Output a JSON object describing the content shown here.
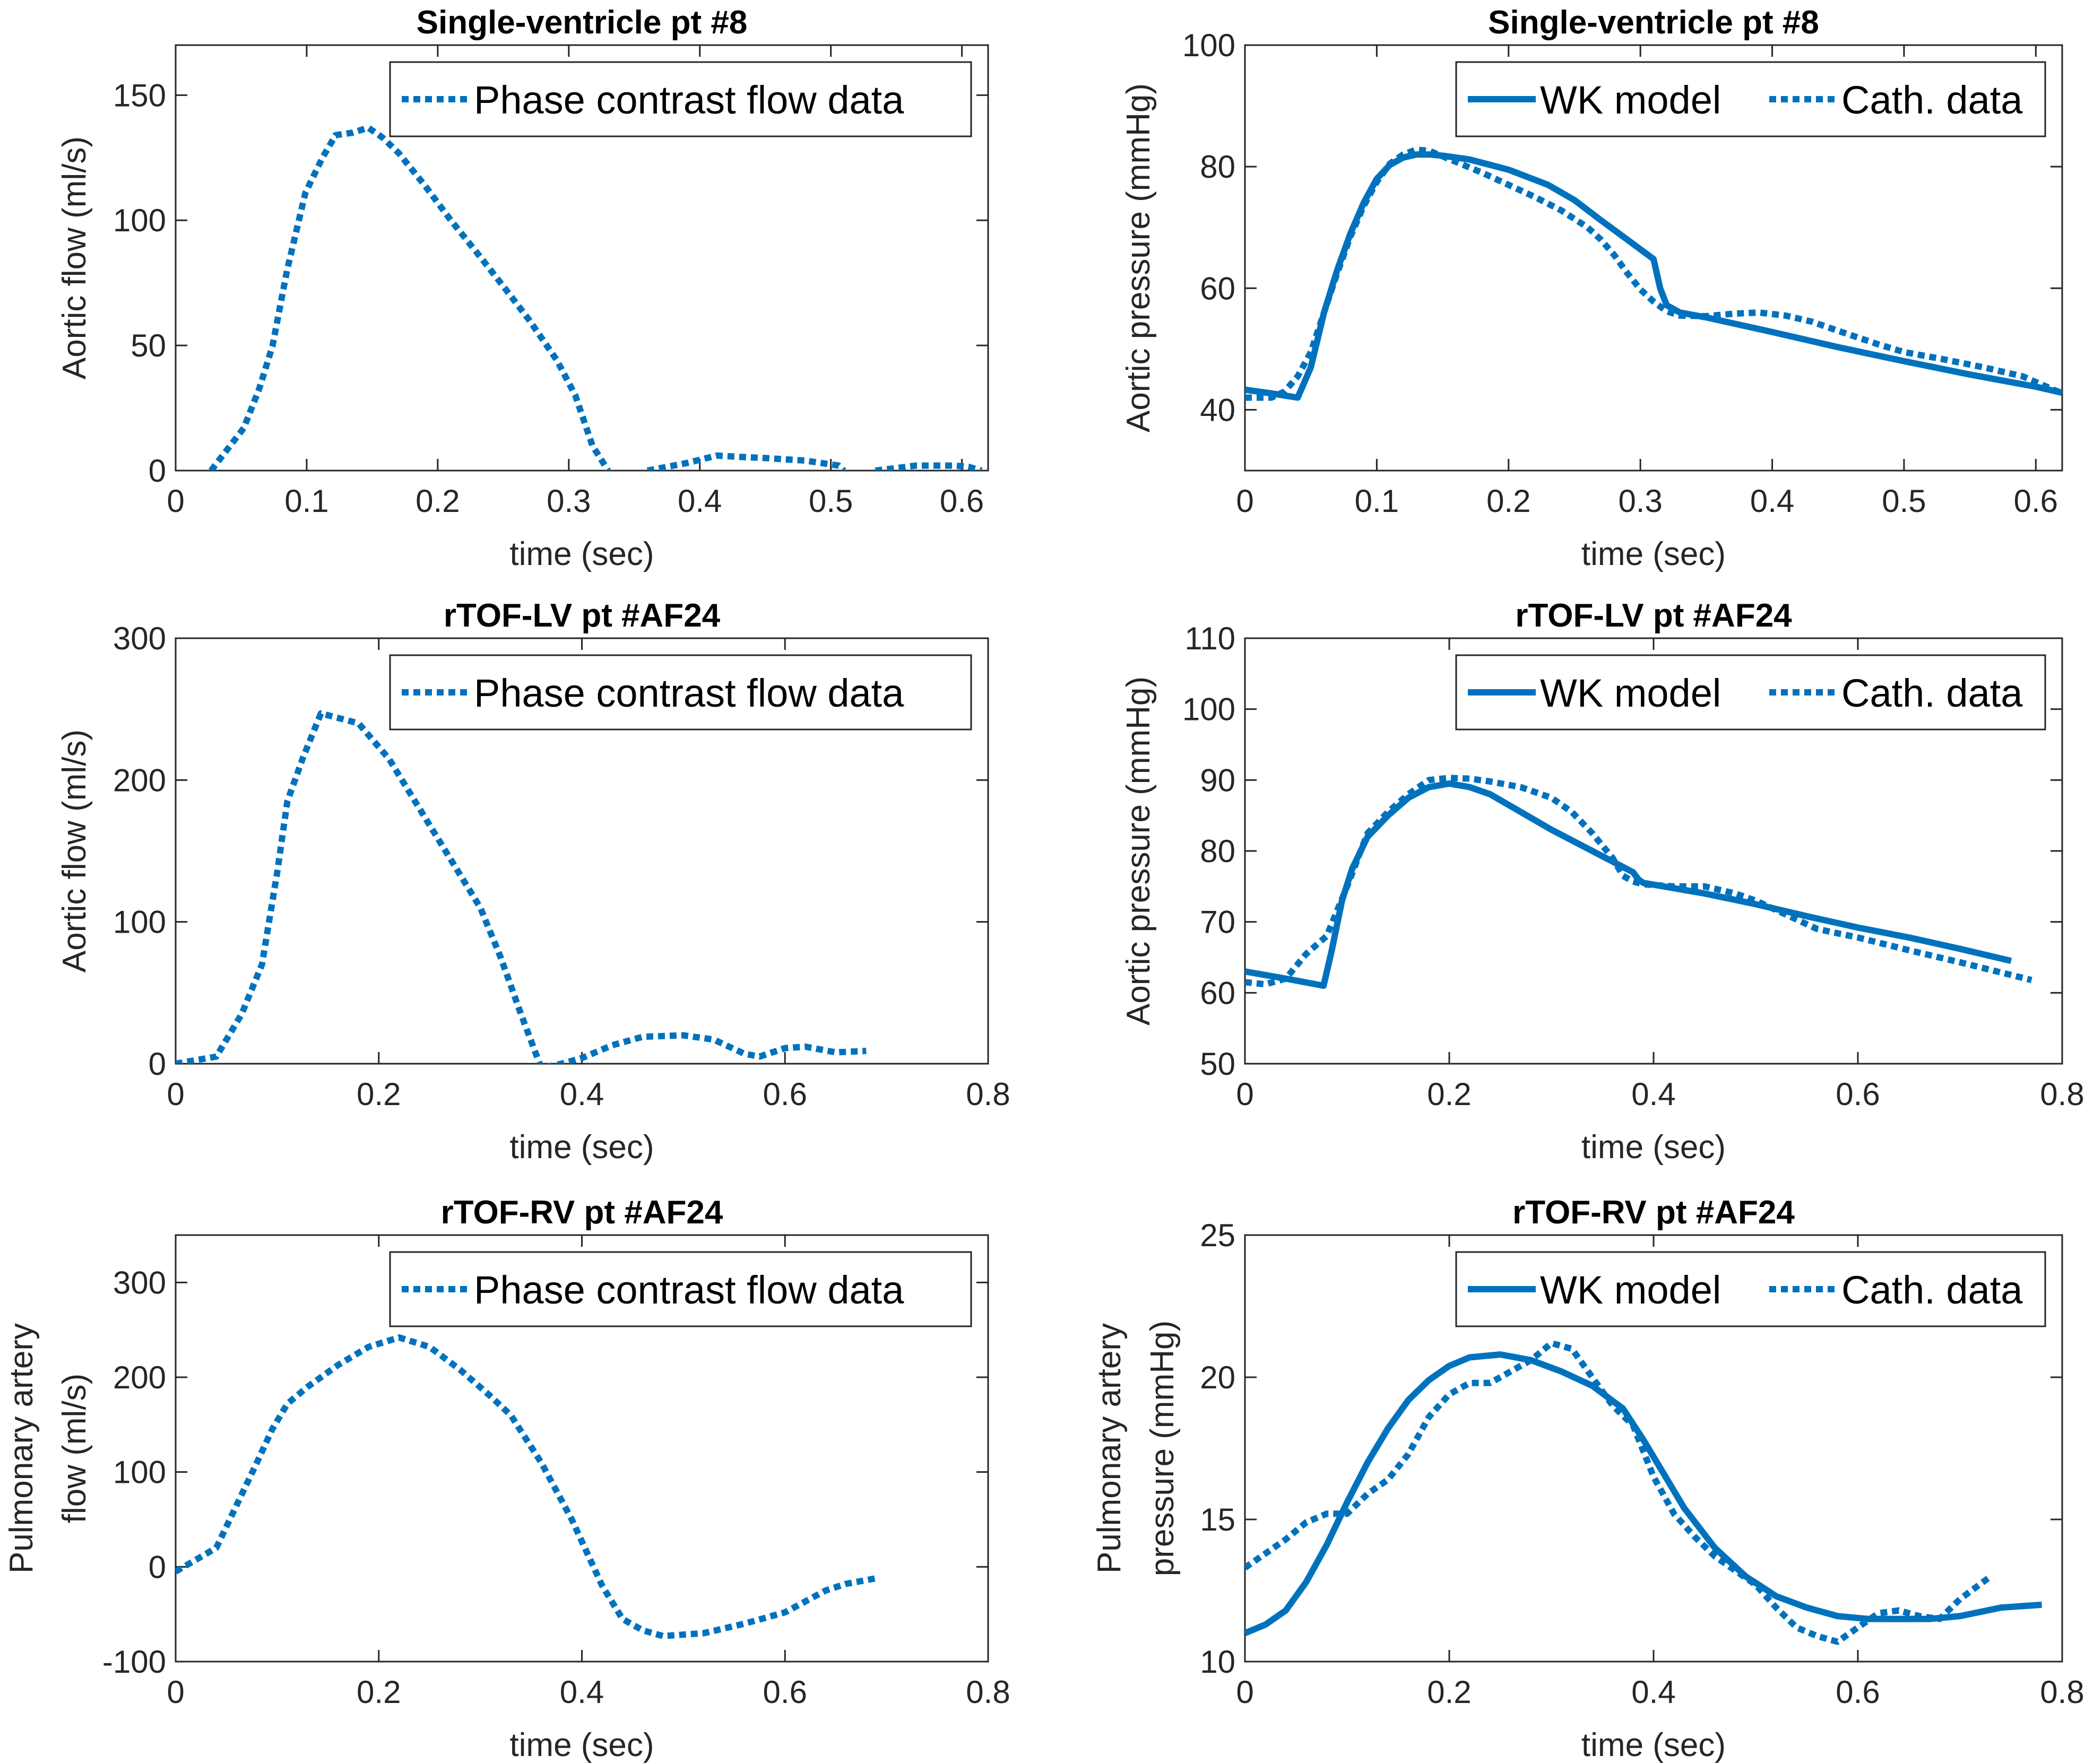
{
  "figure": {
    "line_color": "#0072BD",
    "text_color": "#262626"
  },
  "chart_data": [
    {
      "id": "p1",
      "type": "line",
      "title": "Single-ventricle pt #8",
      "xlabel": "time (sec)",
      "ylabel": [
        "Aortic flow (ml/s)"
      ],
      "xlim": [
        0,
        0.62
      ],
      "ylim": [
        0,
        170
      ],
      "xticks": [
        0,
        0.1,
        0.2,
        0.3,
        0.4,
        0.5,
        0.6
      ],
      "xtick_labels": [
        "0",
        "0.1",
        "0.2",
        "0.3",
        "0.4",
        "0.5",
        "0.6"
      ],
      "yticks": [
        0,
        50,
        100,
        150
      ],
      "ytick_labels": [
        "0",
        "50",
        "100",
        "150"
      ],
      "grid": false,
      "legend": {
        "location": "top-right",
        "entries": [
          "Phase contrast flow data"
        ]
      },
      "series": [
        {
          "name": "Phase contrast flow data",
          "style": "dotted",
          "segments": [
            {
              "x": [
                0.027,
                0.052,
                0.064,
                0.074,
                0.085,
                0.099,
                0.112,
                0.122,
                0.135,
                0.147,
                0.158,
                0.17,
                0.19,
                0.21,
                0.23,
                0.251,
                0.27,
                0.291,
                0.305,
                0.318,
                0.33
              ],
              "y": [
                0,
                17,
                33,
                50,
                80,
                111,
                125,
                134,
                135,
                137,
                133,
                127,
                114,
                100,
                87,
                73,
                60,
                44,
                30,
                10,
                0
              ]
            },
            {
              "x": [
                0.36,
                0.39,
                0.413,
                0.43,
                0.45,
                0.48,
                0.506,
                0.51
              ],
              "y": [
                0,
                3,
                6,
                5.5,
                5,
                4,
                2,
                0
              ]
            },
            {
              "x": [
                0.534,
                0.55,
                0.565,
                0.58,
                0.594,
                0.605,
                0.615
              ],
              "y": [
                0,
                1,
                2,
                2,
                2,
                1.5,
                0
              ]
            }
          ]
        }
      ]
    },
    {
      "id": "p2",
      "type": "line",
      "title": "Single-ventricle pt #8",
      "xlabel": "time (sec)",
      "ylabel": [
        "Aortic pressure (mmHg)"
      ],
      "xlim": [
        0,
        0.62
      ],
      "ylim": [
        30,
        100
      ],
      "xticks": [
        0,
        0.1,
        0.2,
        0.3,
        0.4,
        0.5,
        0.6
      ],
      "xtick_labels": [
        "0",
        "0.1",
        "0.2",
        "0.3",
        "0.4",
        "0.5",
        "0.6"
      ],
      "yticks": [
        40,
        60,
        80,
        100
      ],
      "ytick_labels": [
        "40",
        "60",
        "80",
        "100"
      ],
      "grid": false,
      "legend": {
        "location": "top-right",
        "entries": [
          "WK model",
          "Cath. data"
        ]
      },
      "series": [
        {
          "name": "WK model",
          "style": "solid",
          "segments": [
            {
              "x": [
                0,
                0.02,
                0.04,
                0.05,
                0.06,
                0.07,
                0.08,
                0.09,
                0.1,
                0.11,
                0.12,
                0.13,
                0.14,
                0.15,
                0.17,
                0.2,
                0.23,
                0.25,
                0.27,
                0.29,
                0.31,
                0.315,
                0.32,
                0.33,
                0.35,
                0.4,
                0.45,
                0.5,
                0.55,
                0.6,
                0.62
              ],
              "y": [
                43.3,
                42.7,
                42,
                47,
                56,
                63,
                69,
                74,
                78,
                80.3,
                81.5,
                82,
                82,
                81.8,
                81.2,
                79.5,
                77,
                74.5,
                71.2,
                68,
                64.8,
                60,
                57.2,
                56,
                55.2,
                52.8,
                50.3,
                48,
                45.8,
                43.8,
                42.8
              ]
            }
          ]
        },
        {
          "name": "Cath. data",
          "style": "dotted",
          "segments": [
            {
              "x": [
                0,
                0.02,
                0.03,
                0.04,
                0.05,
                0.06,
                0.07,
                0.08,
                0.09,
                0.1,
                0.11,
                0.12,
                0.13,
                0.14,
                0.16,
                0.18,
                0.2,
                0.22,
                0.24,
                0.26,
                0.27,
                0.28,
                0.29,
                0.3,
                0.31,
                0.32,
                0.33,
                0.35,
                0.37,
                0.39,
                0.41,
                0.43,
                0.45,
                0.48,
                0.5,
                0.53,
                0.56,
                0.59,
                0.62
              ],
              "y": [
                42,
                42,
                43,
                45.5,
                49.5,
                56,
                62.5,
                68.5,
                73.5,
                77.5,
                80.5,
                82,
                82.8,
                82.6,
                80.8,
                79,
                77,
                75,
                72.8,
                70,
                68,
                65.5,
                62.5,
                59.8,
                57.8,
                56.2,
                55.5,
                55.4,
                55.8,
                56,
                55.5,
                54.5,
                53,
                50.8,
                49.5,
                48.3,
                47,
                45.5,
                42.7
              ]
            }
          ]
        }
      ]
    },
    {
      "id": "p3",
      "type": "line",
      "title": "rTOF-LV pt #AF24",
      "xlabel": "time (sec)",
      "ylabel": [
        "Aortic flow (ml/s)"
      ],
      "xlim": [
        0,
        0.8
      ],
      "ylim": [
        0,
        300
      ],
      "xticks": [
        0,
        0.2,
        0.4,
        0.6,
        0.8
      ],
      "xtick_labels": [
        "0",
        "0.2",
        "0.4",
        "0.6",
        "0.8"
      ],
      "yticks": [
        0,
        100,
        200,
        300
      ],
      "ytick_labels": [
        "0",
        "100",
        "200",
        "300"
      ],
      "grid": false,
      "legend": {
        "location": "top-right",
        "entries": [
          "Phase contrast flow data"
        ]
      },
      "series": [
        {
          "name": "Phase contrast flow data",
          "style": "dotted",
          "segments": [
            {
              "x": [
                0,
                0.04,
                0.065,
                0.085,
                0.1,
                0.11,
                0.125,
                0.143,
                0.18,
                0.21,
                0.24,
                0.27,
                0.3,
                0.32,
                0.34,
                0.36,
                0.38,
                0.4,
                0.43,
                0.46,
                0.5,
                0.53,
                0.56,
                0.575,
                0.6,
                0.62,
                0.65,
                0.68
              ],
              "y": [
                0,
                5,
                35,
                70,
                135,
                185,
                215,
                247,
                240,
                215,
                180,
                145,
                110,
                75,
                35,
                -3,
                0,
                4,
                13,
                19,
                20,
                17,
                7,
                5,
                11,
                12,
                8,
                9
              ]
            }
          ]
        }
      ]
    },
    {
      "id": "p4",
      "type": "line",
      "title": "rTOF-LV pt #AF24",
      "xlabel": "time (sec)",
      "ylabel": [
        "Aortic pressure (mmHg)"
      ],
      "xlim": [
        0,
        0.8
      ],
      "ylim": [
        50,
        110
      ],
      "xticks": [
        0,
        0.2,
        0.4,
        0.6,
        0.8
      ],
      "xtick_labels": [
        "0",
        "0.2",
        "0.4",
        "0.6",
        "0.8"
      ],
      "yticks": [
        50,
        60,
        70,
        80,
        90,
        100,
        110
      ],
      "ytick_labels": [
        "50",
        "60",
        "70",
        "80",
        "90",
        "100",
        "110"
      ],
      "grid": false,
      "legend": {
        "location": "top-right",
        "entries": [
          "WK model",
          "Cath. data"
        ]
      },
      "series": [
        {
          "name": "WK model",
          "style": "solid",
          "segments": [
            {
              "x": [
                0,
                0.04,
                0.077,
                0.085,
                0.095,
                0.105,
                0.12,
                0.14,
                0.16,
                0.18,
                0.2,
                0.22,
                0.24,
                0.27,
                0.3,
                0.34,
                0.38,
                0.385,
                0.39,
                0.45,
                0.5,
                0.55,
                0.6,
                0.65,
                0.7,
                0.75
              ],
              "y": [
                63,
                62,
                61,
                66,
                73,
                77.5,
                82,
                85,
                87.5,
                89,
                89.5,
                89,
                88,
                85.5,
                83,
                80,
                77,
                76,
                75.5,
                74,
                72.5,
                70.8,
                69.2,
                67.8,
                66.2,
                64.5
              ]
            }
          ]
        },
        {
          "name": "Cath. data",
          "style": "dotted",
          "segments": [
            {
              "x": [
                0,
                0.02,
                0.04,
                0.06,
                0.08,
                0.1,
                0.12,
                0.14,
                0.16,
                0.18,
                0.2,
                0.22,
                0.24,
                0.27,
                0.3,
                0.32,
                0.34,
                0.36,
                0.37,
                0.38,
                0.39,
                0.42,
                0.45,
                0.48,
                0.5,
                0.53,
                0.56,
                0.6,
                0.65,
                0.7,
                0.77
              ],
              "y": [
                61.5,
                61.2,
                62,
                65.5,
                68,
                75,
                82.5,
                85.5,
                88,
                90,
                90.3,
                90.2,
                89.8,
                89,
                87.5,
                85.5,
                82.5,
                79,
                76.5,
                75.7,
                75.3,
                75,
                75,
                74,
                73,
                71,
                69,
                67.8,
                66,
                64.3,
                61.8
              ]
            }
          ]
        }
      ]
    },
    {
      "id": "p5",
      "type": "line",
      "title": "rTOF-RV pt #AF24",
      "xlabel": "time (sec)",
      "ylabel": [
        "Pulmonary artery",
        "flow (ml/s)"
      ],
      "xlim": [
        0,
        0.8
      ],
      "ylim": [
        -100,
        350
      ],
      "xticks": [
        0,
        0.2,
        0.4,
        0.6,
        0.8
      ],
      "xtick_labels": [
        "0",
        "0.2",
        "0.4",
        "0.6",
        "0.8"
      ],
      "yticks": [
        -100,
        0,
        100,
        200,
        300
      ],
      "ytick_labels": [
        "-100",
        "0",
        "100",
        "200",
        "300"
      ],
      "grid": false,
      "legend": {
        "location": "top-right",
        "entries": [
          "Phase contrast flow data"
        ]
      },
      "series": [
        {
          "name": "Phase contrast flow data",
          "style": "dotted",
          "segments": [
            {
              "x": [
                0,
                0.04,
                0.06,
                0.08,
                0.095,
                0.11,
                0.13,
                0.16,
                0.19,
                0.22,
                0.25,
                0.28,
                0.31,
                0.33,
                0.36,
                0.39,
                0.42,
                0.44,
                0.46,
                0.48,
                0.52,
                0.56,
                0.6,
                0.64,
                0.66,
                0.69
              ],
              "y": [
                -5,
                20,
                65,
                110,
                145,
                172,
                190,
                213,
                232,
                242,
                232,
                208,
                180,
                160,
                110,
                50,
                -20,
                -55,
                -67,
                -73,
                -70,
                -60,
                -48,
                -25,
                -18,
                -12
              ]
            }
          ]
        }
      ]
    },
    {
      "id": "p6",
      "type": "line",
      "title": "rTOF-RV pt #AF24",
      "xlabel": "time (sec)",
      "ylabel": [
        "Pulmonary artery",
        "pressure (mmHg)"
      ],
      "xlim": [
        0,
        0.8
      ],
      "ylim": [
        10,
        25
      ],
      "xticks": [
        0,
        0.2,
        0.4,
        0.6,
        0.8
      ],
      "xtick_labels": [
        "0",
        "0.2",
        "0.4",
        "0.6",
        "0.8"
      ],
      "yticks": [
        10,
        15,
        20,
        25
      ],
      "ytick_labels": [
        "10",
        "15",
        "20",
        "25"
      ],
      "grid": false,
      "legend": {
        "location": "top-right",
        "entries": [
          "WK model",
          "Cath. data"
        ]
      },
      "series": [
        {
          "name": "WK model",
          "style": "solid",
          "segments": [
            {
              "x": [
                0,
                0.02,
                0.04,
                0.06,
                0.08,
                0.1,
                0.12,
                0.14,
                0.16,
                0.18,
                0.2,
                0.22,
                0.25,
                0.28,
                0.31,
                0.34,
                0.37,
                0.39,
                0.41,
                0.43,
                0.46,
                0.49,
                0.52,
                0.55,
                0.58,
                0.61,
                0.64,
                0.67,
                0.7,
                0.74,
                0.78
              ],
              "y": [
                11,
                11.3,
                11.8,
                12.8,
                14.1,
                15.6,
                17,
                18.2,
                19.2,
                19.9,
                20.4,
                20.7,
                20.8,
                20.6,
                20.2,
                19.7,
                18.9,
                17.8,
                16.6,
                15.4,
                14,
                13,
                12.3,
                11.9,
                11.6,
                11.5,
                11.5,
                11.5,
                11.6,
                11.9,
                12
              ]
            }
          ]
        },
        {
          "name": "Cath. data",
          "style": "dotted",
          "segments": [
            {
              "x": [
                0,
                0.02,
                0.04,
                0.06,
                0.08,
                0.1,
                0.12,
                0.14,
                0.16,
                0.18,
                0.2,
                0.22,
                0.24,
                0.26,
                0.28,
                0.3,
                0.32,
                0.34,
                0.36,
                0.38,
                0.4,
                0.42,
                0.44,
                0.46,
                0.48,
                0.5,
                0.52,
                0.54,
                0.56,
                0.58,
                0.6,
                0.62,
                0.64,
                0.66,
                0.68,
                0.7,
                0.73
              ],
              "y": [
                13.3,
                13.8,
                14.3,
                14.9,
                15.2,
                15.2,
                15.9,
                16.4,
                17.3,
                18.6,
                19.4,
                19.8,
                19.8,
                20.2,
                20.6,
                21.2,
                21,
                20,
                19,
                18.3,
                16.5,
                15.2,
                14.4,
                13.7,
                13.2,
                12.7,
                11.9,
                11.2,
                10.9,
                10.7,
                11.2,
                11.7,
                11.8,
                11.6,
                11.5,
                12.2,
                13
              ]
            }
          ]
        }
      ]
    }
  ]
}
